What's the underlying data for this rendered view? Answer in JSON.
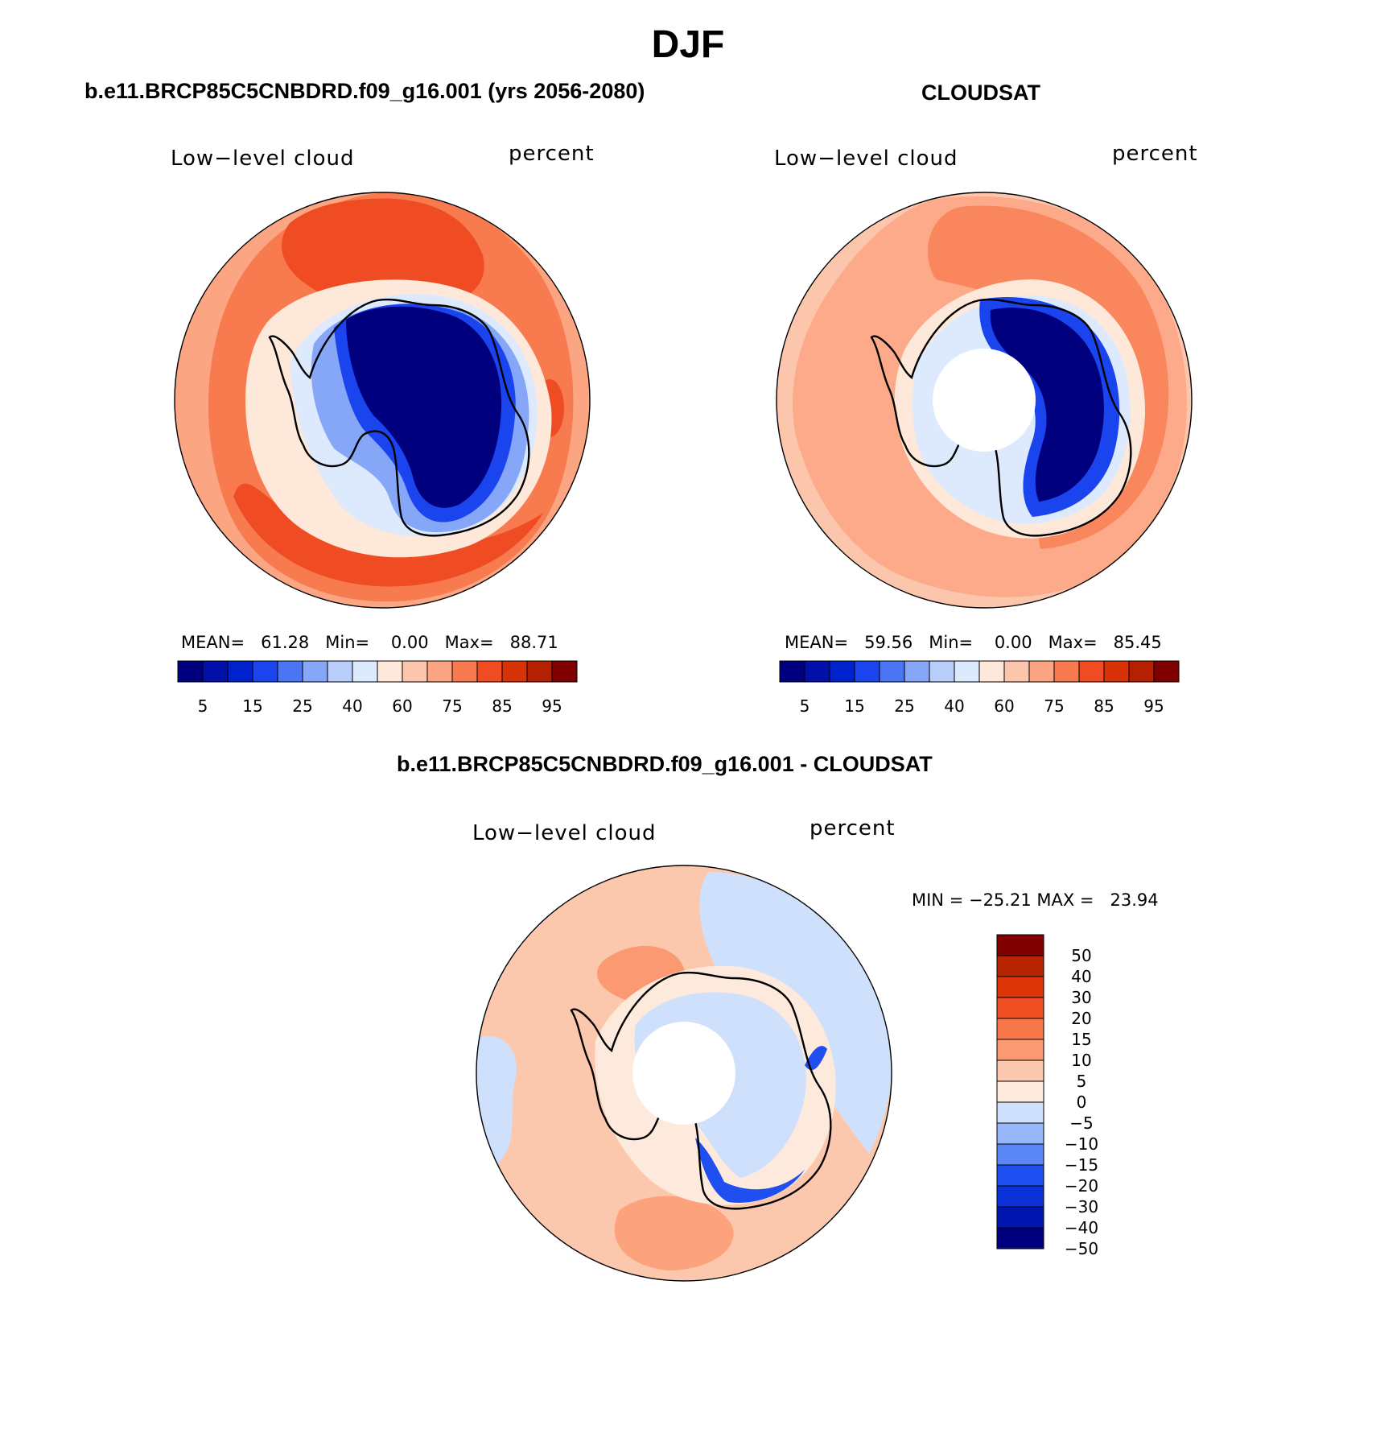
{
  "figure": {
    "season": "DJF"
  },
  "panels": {
    "model": {
      "title": "b.e11.BRCP85C5CNBDRD.f09_g16.001 (yrs 2056-2080)",
      "variable": "Low−level cloud",
      "units": "percent",
      "stats": {
        "mean_label": "MEAN=",
        "mean": "61.28",
        "min_label": "Min=",
        "min": "0.00",
        "max_label": "Max=",
        "max": "88.71"
      }
    },
    "obs": {
      "title": "CLOUDSAT",
      "variable": "Low−level cloud",
      "units": "percent",
      "stats": {
        "mean_label": "MEAN=",
        "mean": "59.56",
        "min_label": "Min=",
        "min": "0.00",
        "max_label": "Max=",
        "max": "85.45"
      }
    },
    "diff": {
      "title": "b.e11.BRCP85C5CNBDRD.f09_g16.001 - CLOUDSAT",
      "variable": "Low−level cloud",
      "units": "percent",
      "minmax": "MIN = −25.21 MAX =   23.94"
    }
  },
  "colorbars": {
    "abs": {
      "colors": [
        "#00007f",
        "#0010a8",
        "#0022cc",
        "#1a44ee",
        "#4a76f4",
        "#86a6f8",
        "#b9cdfb",
        "#dde9fc",
        "#fde8da",
        "#fcc6ad",
        "#fba582",
        "#f87a4f",
        "#f04c24",
        "#d93207",
        "#b32100",
        "#7f0000"
      ],
      "tick_labels": [
        "5",
        "15",
        "25",
        "40",
        "60",
        "75",
        "85",
        "95"
      ]
    },
    "diff": {
      "colors": [
        "#00007f",
        "#0016b0",
        "#0a32d8",
        "#1f4ff0",
        "#5a86f6",
        "#98b7fa",
        "#cfe0fc",
        "#fdeadc",
        "#fcc8ad",
        "#fb9a72",
        "#f8774a",
        "#f14f24",
        "#dc3508",
        "#b52300",
        "#800000"
      ],
      "tick_labels": [
        "50",
        "40",
        "30",
        "20",
        "15",
        "10",
        "5",
        "0",
        "−5",
        "−10",
        "−15",
        "−20",
        "−30",
        "−40",
        "−50"
      ]
    }
  },
  "chart_data": [
    {
      "type": "heatmap",
      "title": "b.e11.BRCP85C5CNBDRD.f09_g16.001 (yrs 2056-2080)",
      "subtitle": "Low−level cloud",
      "units": "percent",
      "contour_levels": [
        5,
        10,
        15,
        20,
        25,
        30,
        40,
        50,
        60,
        65,
        70,
        75,
        80,
        85,
        90,
        95
      ],
      "mean": 61.28,
      "min": 0.0,
      "max": 88.71
    },
    {
      "type": "heatmap",
      "title": "CLOUDSAT",
      "subtitle": "Low−level cloud",
      "units": "percent",
      "contour_levels": [
        5,
        10,
        15,
        20,
        25,
        30,
        40,
        50,
        60,
        65,
        70,
        75,
        80,
        85,
        90,
        95
      ],
      "mean": 59.56,
      "min": 0.0,
      "max": 85.45
    },
    {
      "type": "heatmap",
      "title": "b.e11.BRCP85C5CNBDRD.f09_g16.001 - CLOUDSAT",
      "subtitle": "Low−level cloud",
      "units": "percent",
      "contour_levels": [
        -50,
        -40,
        -30,
        -20,
        -15,
        -10,
        -5,
        0,
        5,
        10,
        15,
        20,
        30,
        40,
        50
      ],
      "min": -25.21,
      "max": 23.94
    }
  ]
}
